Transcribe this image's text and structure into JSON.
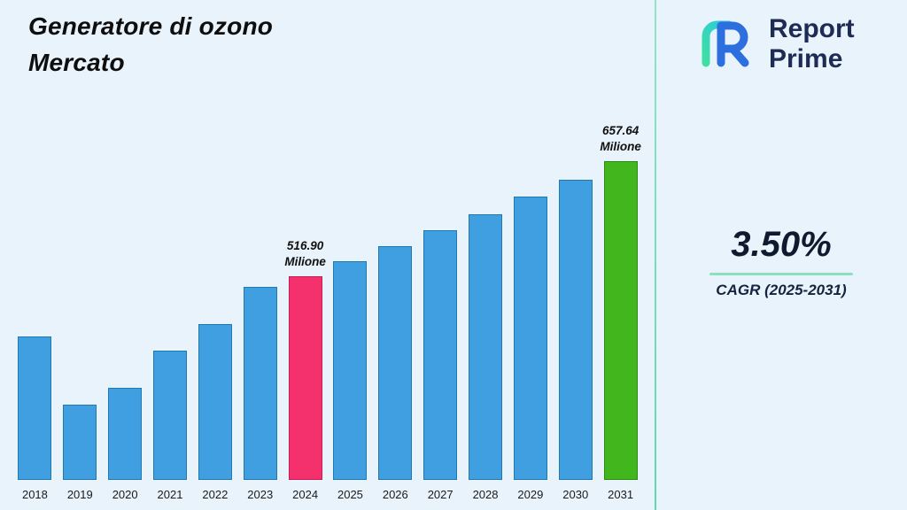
{
  "title": {
    "line1": "Generatore di ozono",
    "line2": "Mercato"
  },
  "logo": {
    "name_line1": "Report",
    "name_line2": "Prime"
  },
  "stats": {
    "cagr_value": "3.50%",
    "cagr_label": "CAGR (2025-2031)"
  },
  "chart_data": {
    "type": "bar",
    "title": "Generatore di ozono Mercato",
    "unit": "Milione",
    "xlabel": "",
    "ylabel": "",
    "legend": "none",
    "y_axis": "hidden, bars drawn with non-zero visual baseline",
    "categories": [
      "2018",
      "2019",
      "2020",
      "2021",
      "2022",
      "2023",
      "2024",
      "2025",
      "2026",
      "2027",
      "2028",
      "2029",
      "2030",
      "2031"
    ],
    "values": [
      443,
      360,
      381,
      426,
      458,
      504,
      516.9,
      535.0,
      553.7,
      573.1,
      593.2,
      613.9,
      635.4,
      657.64
    ],
    "labeled_points": [
      {
        "category": "2024",
        "lines": [
          "516.90",
          "Milione"
        ]
      },
      {
        "category": "2031",
        "lines": [
          "657.64",
          "Milione"
        ]
      }
    ],
    "colors": {
      "default": "#3f9fe0",
      "default_border": "#2478b0",
      "2024": "#f4316d",
      "2024_border": "#c21d55",
      "2031": "#41b61d",
      "2031_border": "#2f8a12"
    }
  },
  "brand_colors": {
    "background": "#e9f3fb",
    "divider_green": "#7bdeb8",
    "logo_navy": "#1d2b55",
    "logo_blue": "#2e6fe0",
    "logo_teal": "#3bdca4"
  }
}
